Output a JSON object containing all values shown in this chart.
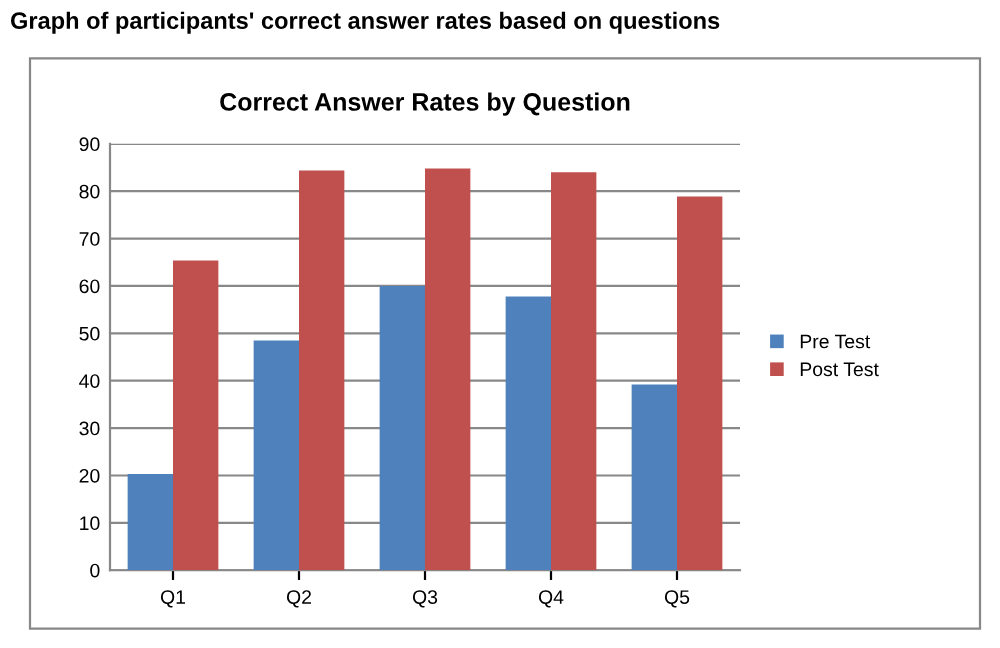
{
  "chart_data": {
    "type": "bar",
    "title": "Graph of participants' correct answer rates based on questions",
    "subtitle": "Correct Answer Rates by Question",
    "categories": [
      "Q1",
      "Q2",
      "Q3",
      "Q4",
      "Q5"
    ],
    "series": [
      {
        "name": "Pre Test",
        "color": "#4f81bd",
        "values": [
          20.3,
          48.5,
          60,
          57.8,
          39.2
        ]
      },
      {
        "name": "Post Test",
        "color": "#c0504d",
        "values": [
          65.4,
          84.4,
          84.8,
          84,
          78.9
        ]
      }
    ],
    "ylim": [
      0,
      90
    ],
    "yticks": [
      0,
      10,
      20,
      30,
      40,
      50,
      60,
      70,
      80,
      90
    ],
    "grid": "y",
    "legend": "right"
  }
}
